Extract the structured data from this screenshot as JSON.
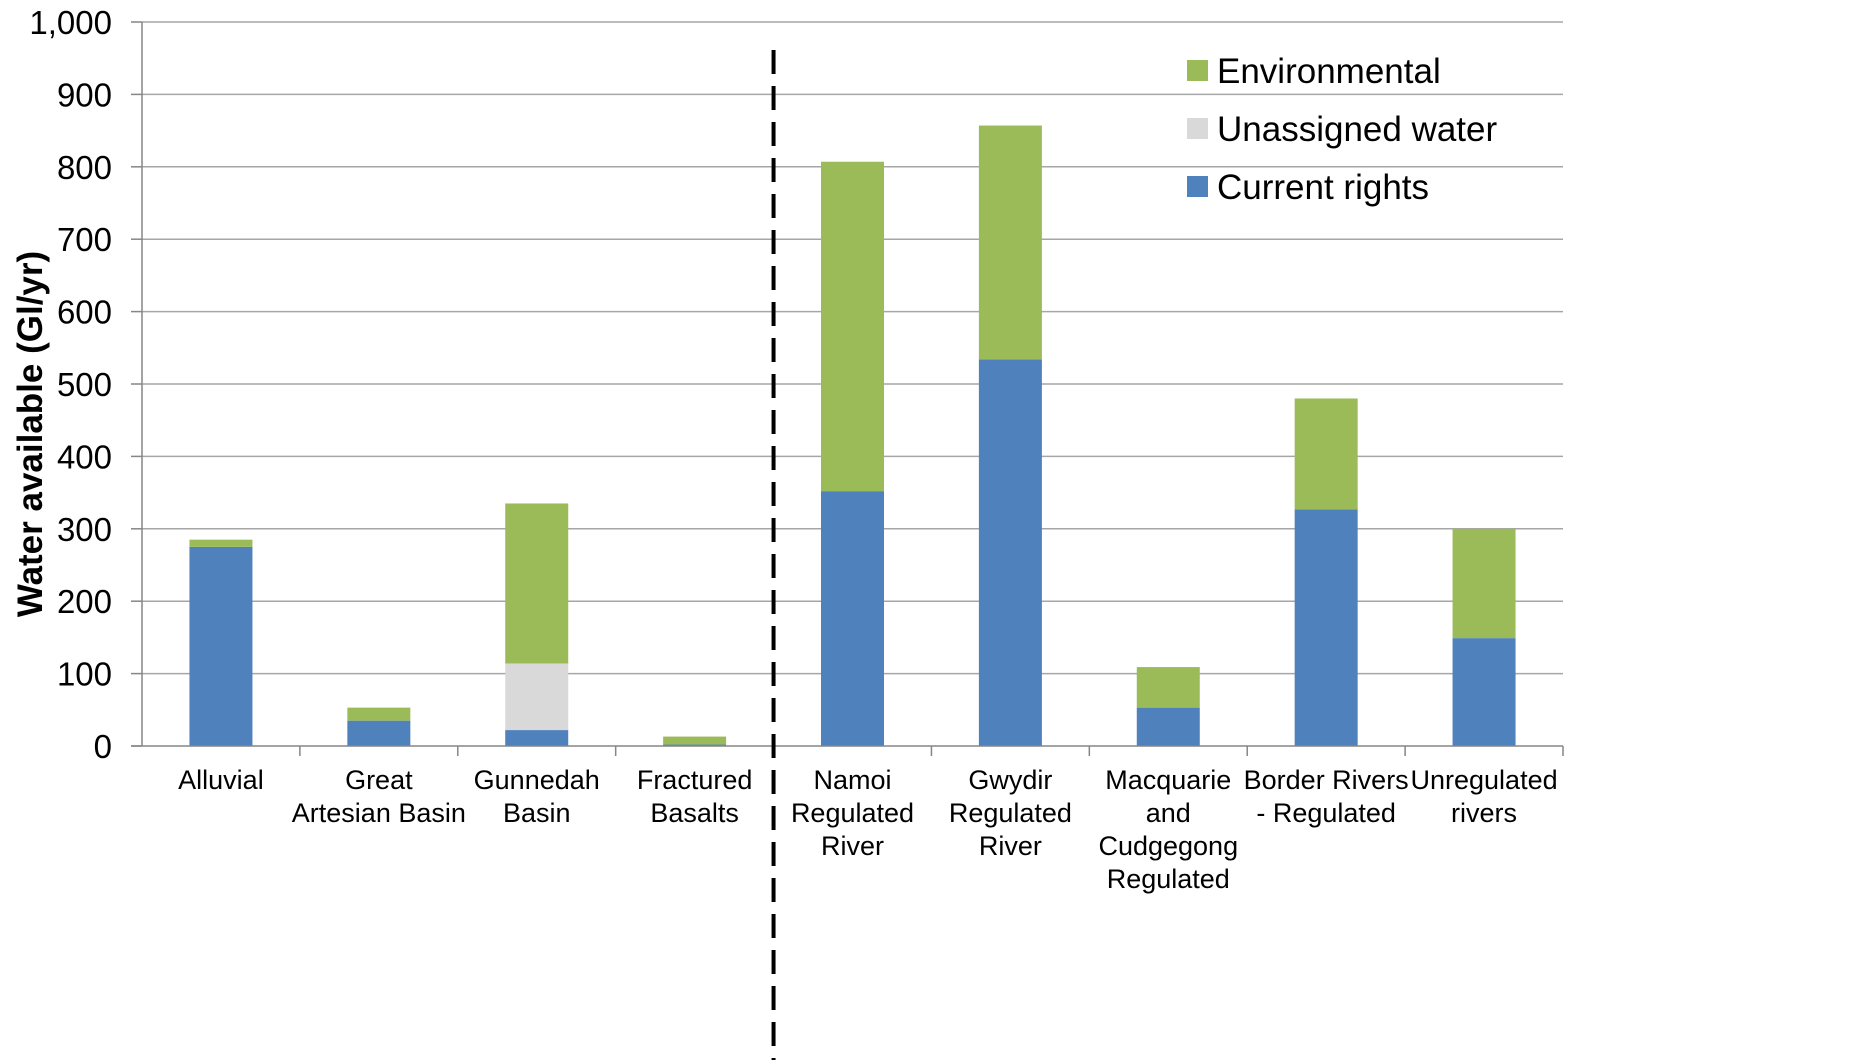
{
  "chart_data": {
    "type": "bar",
    "stacked": true,
    "title": "",
    "xlabel": "",
    "ylabel": "Water available (Gl/yr)",
    "ylim": [
      0,
      1000
    ],
    "yticks": [
      0,
      100,
      200,
      300,
      400,
      500,
      600,
      700,
      800,
      900,
      1000
    ],
    "ytick_labels": [
      "0",
      "100",
      "200",
      "300",
      "400",
      "500",
      "600",
      "700",
      "800",
      "900",
      "1,000"
    ],
    "grid": "horizontal",
    "legend_position": "top-right",
    "divider_after_category": 4,
    "categories": [
      [
        "Alluvial"
      ],
      [
        "Great",
        "Artesian Basin"
      ],
      [
        "Gunnedah",
        "Basin"
      ],
      [
        "Fractured",
        "Basalts"
      ],
      [
        "Namoi",
        "Regulated",
        "River"
      ],
      [
        "Gwydir",
        "Regulated",
        "River"
      ],
      [
        "Macquarie",
        "and",
        "Cudgegong",
        "Regulated"
      ],
      [
        "Border Rivers",
        "- Regulated"
      ],
      [
        "Unregulated",
        "rivers"
      ]
    ],
    "series": [
      {
        "name": "Current rights",
        "color": "#4f81bd",
        "values": [
          275,
          35,
          22,
          2,
          352,
          534,
          53,
          327,
          149
        ]
      },
      {
        "name": "Unassigned water",
        "color": "#d9d9d9",
        "values": [
          0,
          0,
          92,
          0,
          0,
          0,
          0,
          0,
          0
        ]
      },
      {
        "name": "Environmental",
        "color": "#9bbb59",
        "values": [
          10,
          18,
          221,
          11,
          455,
          323,
          56,
          153,
          151
        ]
      }
    ],
    "legend_order": [
      "Environmental",
      "Unassigned water",
      "Current rights"
    ]
  }
}
